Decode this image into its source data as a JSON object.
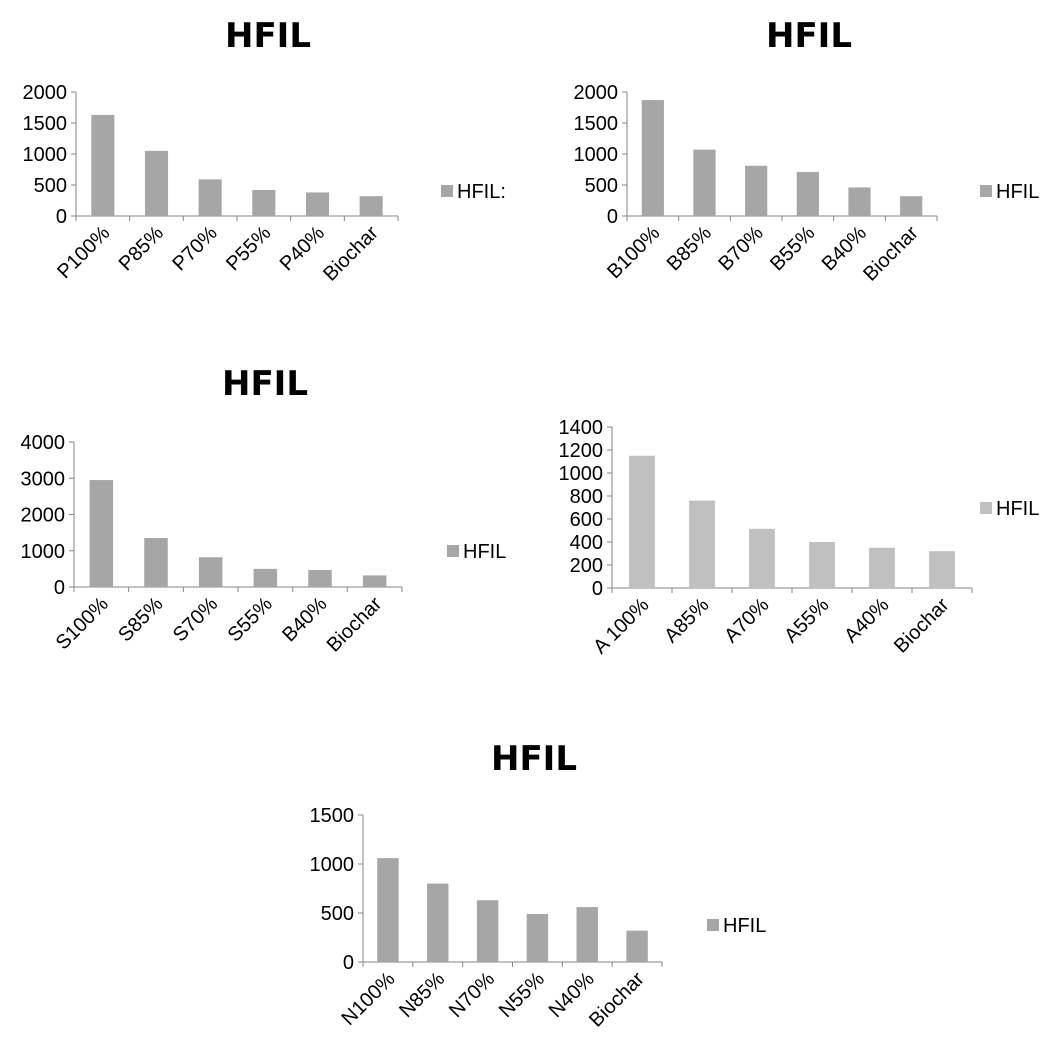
{
  "chart_data": [
    {
      "type": "bar",
      "title": "HFIL",
      "categories": [
        "P100%",
        "P85%",
        "P70%",
        "P55%",
        "P40%",
        "Biochar"
      ],
      "series": [
        {
          "name": "HFIL:",
          "values": [
            1630,
            1050,
            590,
            420,
            380,
            320
          ]
        }
      ],
      "ylim": [
        0,
        2000
      ],
      "yticks": [
        0,
        500,
        1000,
        1500,
        2000
      ],
      "color": "#a6a6a6",
      "legend": "right",
      "grid": false
    },
    {
      "type": "bar",
      "title": "HFIL",
      "categories": [
        "B100%",
        "B85%",
        "B70%",
        "B55%",
        "B40%",
        "Biochar"
      ],
      "series": [
        {
          "name": "HFIL",
          "values": [
            1870,
            1070,
            810,
            710,
            460,
            320
          ]
        }
      ],
      "ylim": [
        0,
        2000
      ],
      "yticks": [
        0,
        500,
        1000,
        1500,
        2000
      ],
      "color": "#a6a6a6",
      "legend": "right",
      "grid": false
    },
    {
      "type": "bar",
      "title": "HFIL",
      "categories": [
        "S100%",
        "S85%",
        "S70%",
        "S55%",
        "B40%",
        "Biochar"
      ],
      "series": [
        {
          "name": "HFIL",
          "values": [
            2950,
            1350,
            820,
            500,
            470,
            320
          ]
        }
      ],
      "ylim": [
        0,
        4000
      ],
      "yticks": [
        0,
        1000,
        2000,
        3000,
        4000
      ],
      "color": "#a6a6a6",
      "legend": "right",
      "grid": false
    },
    {
      "type": "bar",
      "title": "",
      "categories": [
        "A 100%",
        "A85%",
        "A70%",
        "A55%",
        "A40%",
        "Biochar"
      ],
      "series": [
        {
          "name": "HFIL",
          "values": [
            1150,
            760,
            515,
            400,
            350,
            320
          ]
        }
      ],
      "ylim": [
        0,
        1400
      ],
      "yticks": [
        0,
        200,
        400,
        600,
        800,
        1000,
        1200,
        1400
      ],
      "color": "#c0c0c0",
      "legend": "right",
      "grid": false
    },
    {
      "type": "bar",
      "title": "HFIL",
      "categories": [
        "N100%",
        "N85%",
        "N70%",
        "N55%",
        "N40%",
        "Biochar"
      ],
      "series": [
        {
          "name": "HFIL",
          "values": [
            1060,
            800,
            630,
            490,
            560,
            320
          ]
        }
      ],
      "ylim": [
        0,
        1500
      ],
      "yticks": [
        0,
        500,
        1000,
        1500
      ],
      "color": "#a6a6a6",
      "legend": "right",
      "grid": false
    }
  ]
}
